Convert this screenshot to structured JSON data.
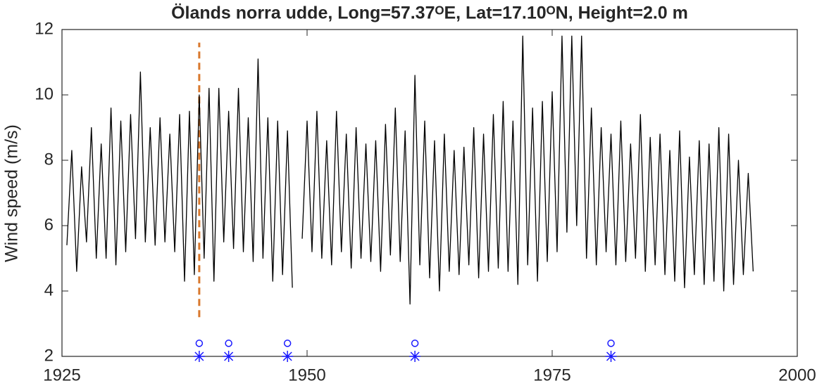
{
  "chart_data": {
    "type": "line",
    "title": "Ölands norra udde, Long=57.37ᴼE, Lat=17.10ᴼN, Height=2.0 m",
    "y_label": "Wind speed (m/s)",
    "xlim": [
      1925,
      2000
    ],
    "xticks": [
      1925,
      1950,
      1975,
      2000
    ],
    "ylim": [
      2,
      12
    ],
    "yticks": [
      2,
      4,
      6,
      8,
      10,
      12
    ],
    "series": [
      {
        "color": "#000000",
        "x": [
          1925.5,
          1926,
          1926.5,
          1927,
          1927.5,
          1928,
          1928.5,
          1929,
          1929.5,
          1930,
          1930.5,
          1931,
          1931.5,
          1932,
          1932.5,
          1933,
          1933.5,
          1934,
          1934.5,
          1935,
          1935.5,
          1936,
          1936.5,
          1937,
          1937.5,
          1938,
          1938.5,
          1939,
          1939.5,
          1940,
          1940.5,
          1941,
          1941.5,
          1942,
          1942.5,
          1943,
          1943.5,
          1944,
          1944.5,
          1945,
          1945.5,
          1946,
          1946.5,
          1947,
          1947.5,
          1948,
          1948.5,
          1949,
          1949.5,
          1950,
          1950.5,
          1951,
          1951.5,
          1952,
          1952.5,
          1953,
          1953.5,
          1954,
          1954.5,
          1955,
          1955.5,
          1956,
          1956.5,
          1957,
          1957.5,
          1958,
          1958.5,
          1959,
          1959.5,
          1960,
          1960.5,
          1961,
          1961.5,
          1962,
          1962.5,
          1963,
          1963.5,
          1964,
          1964.5,
          1965,
          1965.5,
          1966,
          1966.5,
          1967,
          1967.5,
          1968,
          1968.5,
          1969,
          1969.5,
          1970,
          1970.5,
          1971,
          1971.5,
          1972,
          1972.5,
          1973,
          1973.5,
          1974,
          1974.5,
          1975,
          1975.5,
          1976,
          1976.5,
          1977,
          1977.5,
          1978,
          1978.5,
          1979,
          1979.5,
          1980,
          1980.5,
          1981,
          1981.5,
          1982,
          1982.5,
          1983,
          1983.5,
          1984,
          1984.5,
          1985,
          1985.5,
          1986,
          1986.5,
          1987,
          1987.5,
          1988,
          1988.5,
          1989,
          1989.5,
          1990,
          1990.5,
          1991,
          1991.5,
          1992,
          1992.5,
          1993,
          1993.5,
          1994,
          1994.5,
          1995,
          1995.5
        ],
        "values": [
          5.4,
          8.3,
          4.6,
          7.8,
          5.5,
          9.0,
          5.0,
          8.5,
          5.0,
          9.6,
          4.8,
          9.2,
          5.2,
          9.4,
          5.6,
          10.7,
          5.5,
          9.0,
          5.4,
          9.3,
          5.5,
          8.8,
          5.2,
          9.4,
          4.3,
          9.5,
          4.5,
          10.0,
          5.0,
          10.2,
          4.3,
          10.2,
          5.5,
          9.5,
          5.3,
          10.2,
          5.2,
          9.3,
          4.9,
          11.1,
          5.0,
          9.3,
          4.3,
          9.2,
          4.5,
          8.9,
          4.1,
          null,
          5.6,
          9.2,
          5.2,
          9.5,
          5.0,
          8.6,
          4.8,
          9.5,
          5.2,
          8.8,
          4.7,
          9.0,
          5.0,
          8.5,
          4.9,
          8.6,
          4.6,
          9.1,
          5.1,
          9.6,
          4.9,
          8.9,
          3.6,
          10.6,
          4.8,
          9.2,
          4.4,
          8.6,
          4.0,
          8.8,
          4.6,
          8.3,
          4.5,
          8.4,
          4.8,
          9.0,
          4.4,
          8.8,
          4.6,
          9.4,
          4.7,
          9.8,
          4.6,
          9.2,
          4.2,
          11.8,
          4.8,
          9.6,
          4.3,
          9.8,
          4.9,
          10.1,
          5.2,
          11.8,
          5.8,
          11.8,
          6.0,
          11.8,
          5.0,
          9.6,
          4.8,
          9.0,
          5.2,
          8.8,
          4.8,
          9.2,
          4.9,
          8.5,
          5.0,
          9.4,
          4.6,
          8.7,
          4.8,
          8.8,
          4.5,
          8.3,
          4.3,
          8.9,
          4.1,
          8.1,
          4.5,
          8.6,
          4.2,
          8.5,
          4.3,
          9.0,
          4.0,
          8.8,
          4.2,
          8.0,
          4.5,
          7.6,
          4.6
        ]
      },
      {
        "marker": "asterisk",
        "color": "#1a1aff",
        "x": [
          1939,
          1942,
          1948,
          1961,
          1981
        ],
        "values": [
          2,
          2,
          2,
          2,
          2
        ]
      },
      {
        "marker": "circle",
        "color": "#1a1aff",
        "x": [
          1939,
          1942,
          1948,
          1961,
          1981
        ],
        "values": [
          2.4,
          2.4,
          2.4,
          2.4,
          2.4
        ]
      }
    ],
    "reference_line": {
      "x": 1939,
      "y": [
        3.2,
        11.6
      ],
      "color": "#d9782d",
      "style": "dashed"
    }
  }
}
